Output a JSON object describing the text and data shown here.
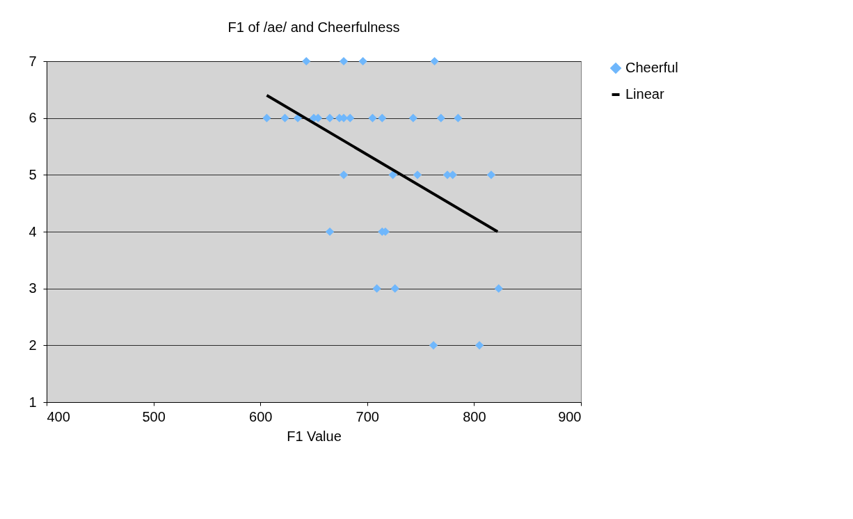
{
  "chart_data": {
    "type": "scatter",
    "title": "F1 of /ae/ and Cheerfulness",
    "xlabel": "F1 Value",
    "series": [
      {
        "name": "Cheerful",
        "color": "#6fb7fc",
        "marker": "diamond",
        "x": [
          643,
          678,
          696,
          763,
          606,
          623,
          635,
          650,
          654,
          665,
          674,
          678,
          684,
          705,
          714,
          743,
          769,
          785,
          678,
          724,
          747,
          775,
          780,
          816,
          665,
          714,
          717,
          709,
          726,
          823,
          762,
          805
        ],
        "values": [
          7,
          7,
          7,
          7,
          6,
          6,
          6,
          6,
          6,
          6,
          6,
          6,
          6,
          6,
          6,
          6,
          6,
          6,
          5,
          5,
          5,
          5,
          5,
          5,
          4,
          4,
          4,
          3,
          3,
          3,
          2,
          2
        ]
      },
      {
        "name": "Linear",
        "type": "line",
        "color": "#000000",
        "marker": "none",
        "x": [
          606,
          822
        ],
        "values": [
          6.4,
          4.0
        ]
      }
    ],
    "xlim": [
      400,
      900
    ],
    "xticks": [
      400,
      500,
      600,
      700,
      800,
      900
    ],
    "ylim": [
      1,
      7
    ],
    "yticks": [
      1,
      2,
      3,
      4,
      5,
      6,
      7
    ],
    "grid": "y",
    "legend": "right"
  }
}
